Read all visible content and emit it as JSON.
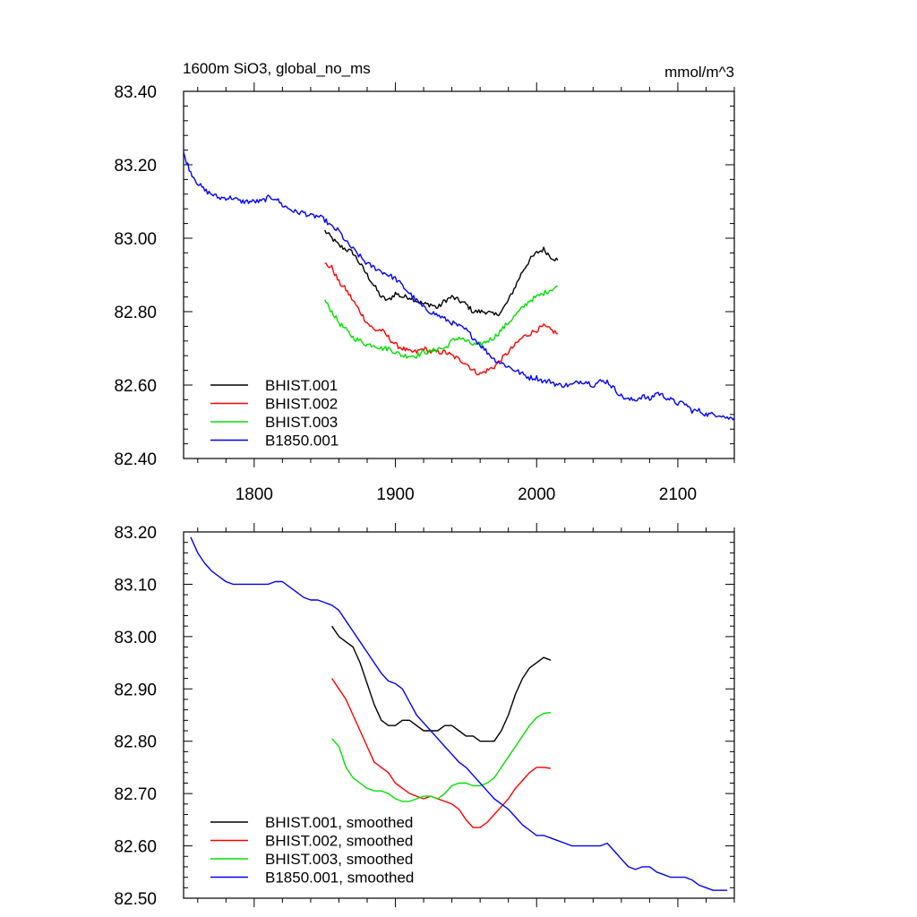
{
  "title_left": "1600m SiO3, global_no_ms",
  "title_right": "mmol/m^3",
  "colors": {
    "BHIST.001": "#000000",
    "BHIST.002": "#ff0000",
    "BHIST.003": "#00e000",
    "B1850.001": "#0000ff"
  },
  "chart_data": [
    {
      "type": "line",
      "title": "1600m SiO3, global_no_ms",
      "units": "mmol/m^3",
      "xlabel": "",
      "ylabel": "",
      "xlim": [
        1750,
        2140
      ],
      "ylim": [
        82.4,
        83.4
      ],
      "xticks": [
        1800,
        1900,
        2000,
        2100
      ],
      "xtick_labels": [
        "1800",
        "1900",
        "2000",
        "2100"
      ],
      "yticks": [
        82.4,
        82.6,
        82.8,
        83.0,
        83.2,
        83.4
      ],
      "ytick_labels": [
        "82.40",
        "82.60",
        "82.80",
        "83.00",
        "83.20",
        "83.40"
      ],
      "legend_position": "bottom-left",
      "noisy": true,
      "series": [
        {
          "name": "BHIST.001",
          "color": "#000000",
          "x": [
            1850,
            1855,
            1860,
            1865,
            1870,
            1875,
            1880,
            1885,
            1890,
            1895,
            1900,
            1905,
            1910,
            1915,
            1920,
            1925,
            1930,
            1935,
            1940,
            1945,
            1950,
            1955,
            1960,
            1965,
            1970,
            1975,
            1980,
            1985,
            1990,
            1995,
            2000,
            2005,
            2010,
            2015
          ],
          "y": [
            83.02,
            83.0,
            82.98,
            82.97,
            82.96,
            82.93,
            82.9,
            82.87,
            82.84,
            82.83,
            82.85,
            82.84,
            82.84,
            82.83,
            82.82,
            82.82,
            82.81,
            82.83,
            82.84,
            82.83,
            82.82,
            82.8,
            82.8,
            82.8,
            82.79,
            82.8,
            82.83,
            82.87,
            82.91,
            82.94,
            82.96,
            82.97,
            82.95,
            82.94
          ]
        },
        {
          "name": "BHIST.002",
          "color": "#ff0000",
          "x": [
            1850,
            1855,
            1860,
            1865,
            1870,
            1875,
            1880,
            1885,
            1890,
            1895,
            1900,
            1905,
            1910,
            1915,
            1920,
            1925,
            1930,
            1935,
            1940,
            1945,
            1950,
            1955,
            1960,
            1965,
            1970,
            1975,
            1980,
            1985,
            1990,
            1995,
            2000,
            2005,
            2010,
            2015
          ],
          "y": [
            82.93,
            82.92,
            82.88,
            82.86,
            82.83,
            82.8,
            82.77,
            82.75,
            82.75,
            82.73,
            82.71,
            82.7,
            82.69,
            82.69,
            82.7,
            82.69,
            82.69,
            82.69,
            82.68,
            82.67,
            82.66,
            82.64,
            82.63,
            82.64,
            82.65,
            82.67,
            82.69,
            82.71,
            82.73,
            82.74,
            82.75,
            82.76,
            82.75,
            82.74
          ]
        },
        {
          "name": "BHIST.003",
          "color": "#00e000",
          "x": [
            1850,
            1855,
            1860,
            1865,
            1870,
            1875,
            1880,
            1885,
            1890,
            1895,
            1900,
            1905,
            1910,
            1915,
            1920,
            1925,
            1930,
            1935,
            1940,
            1945,
            1950,
            1955,
            1960,
            1965,
            1970,
            1975,
            1980,
            1985,
            1990,
            1995,
            2000,
            2005,
            2010,
            2015
          ],
          "y": [
            82.83,
            82.8,
            82.77,
            82.75,
            82.73,
            82.72,
            82.71,
            82.71,
            82.7,
            82.7,
            82.69,
            82.68,
            82.68,
            82.68,
            82.69,
            82.69,
            82.7,
            82.7,
            82.72,
            82.73,
            82.72,
            82.71,
            82.71,
            82.72,
            82.73,
            82.75,
            82.77,
            82.79,
            82.81,
            82.83,
            82.84,
            82.85,
            82.86,
            82.87
          ]
        },
        {
          "name": "B1850.001",
          "color": "#0000ff",
          "x": [
            1750,
            1755,
            1760,
            1765,
            1770,
            1775,
            1780,
            1785,
            1790,
            1795,
            1800,
            1805,
            1810,
            1815,
            1820,
            1825,
            1830,
            1835,
            1840,
            1845,
            1850,
            1855,
            1860,
            1865,
            1870,
            1875,
            1880,
            1885,
            1890,
            1895,
            1900,
            1905,
            1910,
            1915,
            1920,
            1925,
            1930,
            1935,
            1940,
            1945,
            1950,
            1955,
            1960,
            1965,
            1970,
            1975,
            1980,
            1985,
            1990,
            1995,
            2000,
            2005,
            2010,
            2015,
            2020,
            2025,
            2030,
            2035,
            2040,
            2045,
            2050,
            2055,
            2060,
            2065,
            2070,
            2075,
            2080,
            2085,
            2090,
            2095,
            2100,
            2105,
            2110,
            2115,
            2120,
            2125,
            2130,
            2135,
            2140
          ],
          "y": [
            83.23,
            83.18,
            83.15,
            83.13,
            83.12,
            83.11,
            83.11,
            83.11,
            83.1,
            83.1,
            83.1,
            83.1,
            83.11,
            83.11,
            83.09,
            83.08,
            83.07,
            83.07,
            83.06,
            83.06,
            83.05,
            83.03,
            83.02,
            82.99,
            82.97,
            82.95,
            82.93,
            82.92,
            82.91,
            82.9,
            82.89,
            82.87,
            82.85,
            82.83,
            82.81,
            82.8,
            82.79,
            82.78,
            82.77,
            82.76,
            82.75,
            82.73,
            82.71,
            82.69,
            82.67,
            82.66,
            82.65,
            82.64,
            82.63,
            82.62,
            82.62,
            82.61,
            82.61,
            82.6,
            82.6,
            82.6,
            82.61,
            82.61,
            82.6,
            82.61,
            82.61,
            82.59,
            82.57,
            82.56,
            82.56,
            82.57,
            82.56,
            82.58,
            82.57,
            82.56,
            82.55,
            82.55,
            82.53,
            82.53,
            82.52,
            82.52,
            82.52,
            82.51,
            82.51
          ]
        }
      ]
    },
    {
      "type": "line",
      "title": "",
      "xlabel": "",
      "ylabel": "",
      "xlim": [
        1750,
        2140
      ],
      "ylim": [
        82.5,
        83.2
      ],
      "xticks": [
        1800,
        1900,
        2000,
        2100
      ],
      "xtick_labels": [],
      "yticks": [
        82.5,
        82.6,
        82.7,
        82.8,
        82.9,
        83.0,
        83.1,
        83.2
      ],
      "ytick_labels": [
        "82.50",
        "82.60",
        "82.70",
        "82.80",
        "82.90",
        "83.00",
        "83.10",
        "83.20"
      ],
      "legend_position": "bottom-left",
      "noisy": false,
      "series": [
        {
          "name": "BHIST.001, smoothed",
          "color": "#000000",
          "x": [
            1855,
            1860,
            1865,
            1870,
            1875,
            1880,
            1885,
            1890,
            1895,
            1900,
            1905,
            1910,
            1915,
            1920,
            1925,
            1930,
            1935,
            1940,
            1945,
            1950,
            1955,
            1960,
            1965,
            1970,
            1975,
            1980,
            1985,
            1990,
            1995,
            2000,
            2005,
            2010
          ],
          "y": [
            83.02,
            83.0,
            82.99,
            82.98,
            82.95,
            82.91,
            82.87,
            82.84,
            82.83,
            82.83,
            82.84,
            82.84,
            82.83,
            82.82,
            82.82,
            82.82,
            82.83,
            82.83,
            82.82,
            82.81,
            82.81,
            82.8,
            82.8,
            82.8,
            82.82,
            82.85,
            82.89,
            82.92,
            82.94,
            82.95,
            82.96,
            82.955
          ]
        },
        {
          "name": "BHIST.002, smoothed",
          "color": "#ff0000",
          "x": [
            1855,
            1860,
            1865,
            1870,
            1875,
            1880,
            1885,
            1890,
            1895,
            1900,
            1905,
            1910,
            1915,
            1920,
            1925,
            1930,
            1935,
            1940,
            1945,
            1950,
            1955,
            1960,
            1965,
            1970,
            1975,
            1980,
            1985,
            1990,
            1995,
            2000,
            2005,
            2010
          ],
          "y": [
            82.92,
            82.9,
            82.88,
            82.85,
            82.82,
            82.79,
            82.76,
            82.75,
            82.74,
            82.72,
            82.71,
            82.7,
            82.695,
            82.69,
            82.695,
            82.69,
            82.685,
            82.68,
            82.67,
            82.65,
            82.635,
            82.635,
            82.645,
            82.66,
            82.675,
            82.69,
            82.71,
            82.725,
            82.74,
            82.75,
            82.75,
            82.748
          ]
        },
        {
          "name": "BHIST.003, smoothed",
          "color": "#00e000",
          "x": [
            1855,
            1860,
            1865,
            1870,
            1875,
            1880,
            1885,
            1890,
            1895,
            1900,
            1905,
            1910,
            1915,
            1920,
            1925,
            1930,
            1935,
            1940,
            1945,
            1950,
            1955,
            1960,
            1965,
            1970,
            1975,
            1980,
            1985,
            1990,
            1995,
            2000,
            2005,
            2010
          ],
          "y": [
            82.805,
            82.79,
            82.75,
            82.73,
            82.72,
            82.71,
            82.705,
            82.705,
            82.7,
            82.69,
            82.685,
            82.685,
            82.69,
            82.695,
            82.695,
            82.69,
            82.7,
            82.715,
            82.72,
            82.72,
            82.715,
            82.715,
            82.72,
            82.73,
            82.75,
            82.77,
            82.79,
            82.81,
            82.83,
            82.845,
            82.853,
            82.855
          ]
        },
        {
          "name": "B1850.001, smoothed",
          "color": "#0000ff",
          "x": [
            1755,
            1760,
            1765,
            1770,
            1775,
            1780,
            1785,
            1790,
            1795,
            1800,
            1805,
            1810,
            1815,
            1820,
            1825,
            1830,
            1835,
            1840,
            1845,
            1850,
            1855,
            1860,
            1865,
            1870,
            1875,
            1880,
            1885,
            1890,
            1895,
            1900,
            1905,
            1910,
            1915,
            1920,
            1925,
            1930,
            1935,
            1940,
            1945,
            1950,
            1955,
            1960,
            1965,
            1970,
            1975,
            1980,
            1985,
            1990,
            1995,
            2000,
            2005,
            2010,
            2015,
            2020,
            2025,
            2030,
            2035,
            2040,
            2045,
            2050,
            2055,
            2060,
            2065,
            2070,
            2075,
            2080,
            2085,
            2090,
            2095,
            2100,
            2105,
            2110,
            2115,
            2120,
            2125,
            2130,
            2135
          ],
          "y": [
            83.19,
            83.16,
            83.14,
            83.125,
            83.115,
            83.105,
            83.1,
            83.1,
            83.1,
            83.1,
            83.1,
            83.1,
            83.105,
            83.105,
            83.095,
            83.085,
            83.075,
            83.07,
            83.07,
            83.065,
            83.06,
            83.05,
            83.03,
            83.01,
            82.99,
            82.97,
            82.95,
            82.93,
            82.915,
            82.91,
            82.9,
            82.875,
            82.85,
            82.835,
            82.82,
            82.805,
            82.79,
            82.775,
            82.76,
            82.75,
            82.735,
            82.72,
            82.705,
            82.69,
            82.68,
            82.67,
            82.655,
            82.64,
            82.63,
            82.62,
            82.62,
            82.615,
            82.61,
            82.605,
            82.6,
            82.6,
            82.6,
            82.6,
            82.6,
            82.605,
            82.59,
            82.575,
            82.56,
            82.555,
            82.56,
            82.56,
            82.55,
            82.545,
            82.54,
            82.54,
            82.54,
            82.535,
            82.525,
            82.52,
            82.515,
            82.515,
            82.515
          ]
        }
      ]
    }
  ]
}
